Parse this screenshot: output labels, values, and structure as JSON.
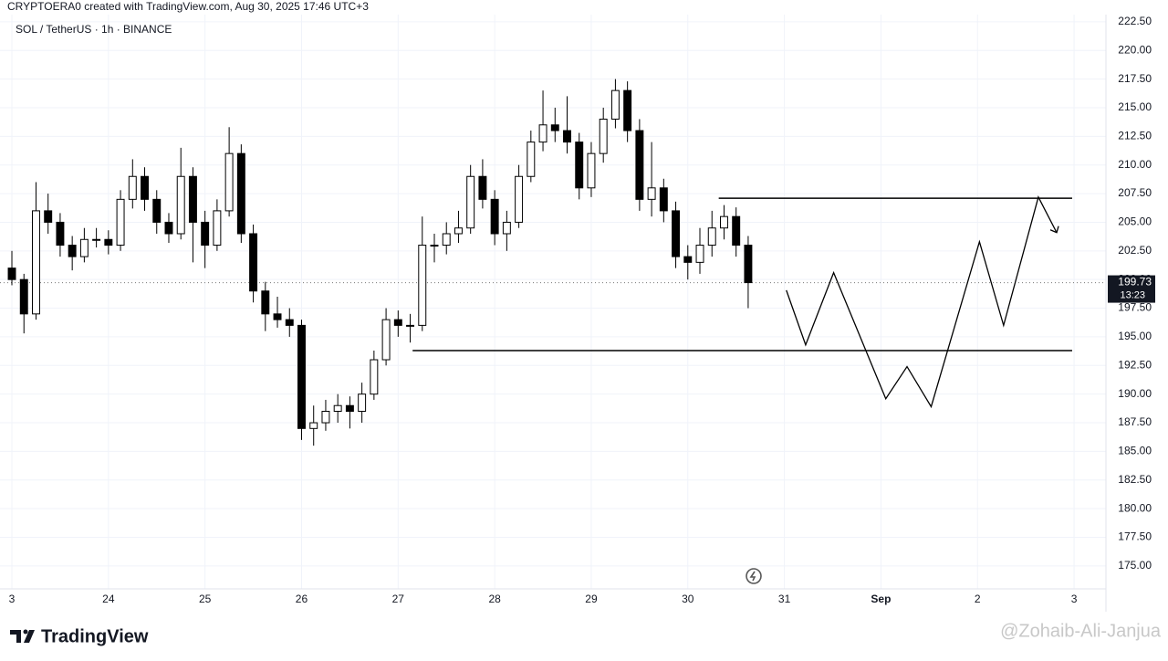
{
  "header": {
    "credit": "CRYPTOERA0 created with TradingView.com, Aug 30, 2025 17:46 UTC+3",
    "symbol": "SOL / TetherUS · 1h · BINANCE"
  },
  "chart_data": {
    "type": "candlestick",
    "xlim": [
      -0.123,
      11.33
    ],
    "ylim": [
      173.0,
      224.4
    ],
    "xticks": [
      {
        "value": 0,
        "label": "3"
      },
      {
        "value": 1,
        "label": "24"
      },
      {
        "value": 2,
        "label": "25"
      },
      {
        "value": 3,
        "label": "26"
      },
      {
        "value": 4,
        "label": "27"
      },
      {
        "value": 5,
        "label": "28"
      },
      {
        "value": 6,
        "label": "29"
      },
      {
        "value": 7,
        "label": "30"
      },
      {
        "value": 8,
        "label": "31"
      },
      {
        "value": 9,
        "label": "Sep"
      },
      {
        "value": 10,
        "label": "2"
      },
      {
        "value": 11,
        "label": "3"
      }
    ],
    "yticks": [
      {
        "value": 175,
        "label": "175.00"
      },
      {
        "value": 177.5,
        "label": "177.50"
      },
      {
        "value": 180,
        "label": "180.00"
      },
      {
        "value": 182.5,
        "label": "182.50"
      },
      {
        "value": 185,
        "label": "185.00"
      },
      {
        "value": 187.5,
        "label": "187.50"
      },
      {
        "value": 190,
        "label": "190.00"
      },
      {
        "value": 192.5,
        "label": "192.50"
      },
      {
        "value": 195,
        "label": "195.00"
      },
      {
        "value": 197.5,
        "label": "197.50"
      },
      {
        "value": 200,
        "label": "200.00"
      },
      {
        "value": 202.5,
        "label": "202.50"
      },
      {
        "value": 205,
        "label": "205.00"
      },
      {
        "value": 207.5,
        "label": "207.50"
      },
      {
        "value": 210,
        "label": "210.00"
      },
      {
        "value": 212.5,
        "label": "212.50"
      },
      {
        "value": 215,
        "label": "215.00"
      },
      {
        "value": 217.5,
        "label": "217.50"
      },
      {
        "value": 220,
        "label": "220.00"
      },
      {
        "value": 222.5,
        "label": "222.50"
      }
    ],
    "grid": true,
    "up_color": "#ffffff",
    "down_color": "#000000",
    "candles": [
      [
        0,
        201,
        202.5,
        199.5,
        200
      ],
      [
        0.125,
        200,
        200.5,
        195.3,
        197
      ],
      [
        0.25,
        197,
        208.5,
        196.5,
        206
      ],
      [
        0.375,
        206,
        207.5,
        204,
        205
      ],
      [
        0.5,
        205,
        205.8,
        202,
        203
      ],
      [
        0.625,
        203,
        203.8,
        200.8,
        202
      ],
      [
        0.75,
        202,
        204.5,
        201.5,
        203.5
      ],
      [
        0.875,
        203.5,
        204.5,
        202.8,
        203.5
      ],
      [
        1,
        203.5,
        204.3,
        202.2,
        203
      ],
      [
        1.125,
        203,
        207.8,
        202.5,
        207
      ],
      [
        1.25,
        207,
        210.5,
        206.2,
        209
      ],
      [
        1.375,
        209,
        209.8,
        206,
        207
      ],
      [
        1.5,
        207,
        207.8,
        204,
        205
      ],
      [
        1.625,
        205,
        205.8,
        203.2,
        204
      ],
      [
        1.75,
        204,
        211.5,
        203.5,
        209
      ],
      [
        1.875,
        209,
        209.8,
        201.5,
        205
      ],
      [
        2,
        205,
        206,
        201,
        203
      ],
      [
        2.125,
        203,
        207,
        202.5,
        206
      ],
      [
        2.25,
        206,
        213.3,
        205.5,
        211
      ],
      [
        2.375,
        211,
        211.8,
        203.2,
        204
      ],
      [
        2.5,
        204,
        204.8,
        198,
        199
      ],
      [
        2.625,
        199,
        199.8,
        195.5,
        197
      ],
      [
        2.75,
        197,
        198.5,
        195.8,
        196.5
      ],
      [
        2.875,
        196.5,
        197.5,
        195,
        196
      ],
      [
        3,
        196,
        196.5,
        186,
        187
      ],
      [
        3.125,
        187,
        189,
        185.5,
        187.5
      ],
      [
        3.25,
        187.5,
        189.5,
        186.8,
        188.5
      ],
      [
        3.375,
        188.5,
        190,
        187.5,
        189
      ],
      [
        3.5,
        189,
        189.8,
        187,
        188.5
      ],
      [
        3.625,
        188.5,
        191,
        187.5,
        190
      ],
      [
        3.75,
        190,
        193.8,
        189.5,
        193
      ],
      [
        3.875,
        193,
        197.5,
        192.5,
        196.5
      ],
      [
        4,
        196.5,
        197.3,
        195,
        196
      ],
      [
        4.125,
        196,
        197,
        194.5,
        196
      ],
      [
        4.25,
        196,
        205.5,
        195.5,
        203
      ],
      [
        4.375,
        203,
        204,
        201.5,
        203
      ],
      [
        4.5,
        203,
        205,
        202.2,
        204
      ],
      [
        4.625,
        204,
        206,
        203.2,
        204.5
      ],
      [
        4.75,
        204.5,
        210,
        204,
        209
      ],
      [
        4.875,
        209,
        210.5,
        206.2,
        207
      ],
      [
        5,
        207,
        207.8,
        203,
        204
      ],
      [
        5.125,
        204,
        206,
        202.5,
        205
      ],
      [
        5.25,
        205,
        210,
        204.5,
        209
      ],
      [
        5.375,
        209,
        213,
        208.5,
        212
      ],
      [
        5.5,
        212,
        216.5,
        211.2,
        213.5
      ],
      [
        5.625,
        213.5,
        215,
        212,
        213
      ],
      [
        5.75,
        213,
        216,
        211,
        212
      ],
      [
        5.875,
        212,
        212.8,
        207,
        208
      ],
      [
        6,
        208,
        212,
        207.2,
        211
      ],
      [
        6.125,
        211,
        215,
        210.2,
        214
      ],
      [
        6.25,
        214,
        217.5,
        213.2,
        216.5
      ],
      [
        6.375,
        216.5,
        217.3,
        212,
        213
      ],
      [
        6.5,
        213,
        214,
        206,
        207
      ],
      [
        6.625,
        207,
        212,
        205.5,
        208
      ],
      [
        6.75,
        208,
        208.8,
        205,
        206
      ],
      [
        6.875,
        206,
        206.8,
        201,
        202
      ],
      [
        7,
        202,
        203,
        200,
        201.5
      ],
      [
        7.125,
        201.5,
        204.5,
        200.5,
        203
      ],
      [
        7.25,
        203,
        206,
        202,
        204.5
      ],
      [
        7.375,
        204.5,
        206.5,
        203.5,
        205.5
      ],
      [
        7.5,
        205.5,
        206.3,
        202,
        203
      ],
      [
        7.625,
        203,
        203.8,
        197.5,
        199.73
      ]
    ],
    "countdown": "13:23",
    "levels": [
      {
        "value": 207.1,
        "x": [
          7.32,
          10.98
        ]
      },
      {
        "value": 193.8,
        "x": [
          4.15,
          10.98
        ]
      }
    ],
    "projection": {
      "x": [
        8.02,
        8.22,
        8.51,
        9.05,
        9.27,
        9.52,
        10.02,
        10.27,
        10.63,
        10.82
      ],
      "y": [
        199.07,
        194.3,
        200.6,
        189.6,
        192.4,
        188.9,
        203.3,
        196.0,
        207.2,
        204.1
      ]
    }
  },
  "footer": {
    "logo": "TradingView",
    "watermark": "@Zohaib-Ali-Janjua"
  }
}
